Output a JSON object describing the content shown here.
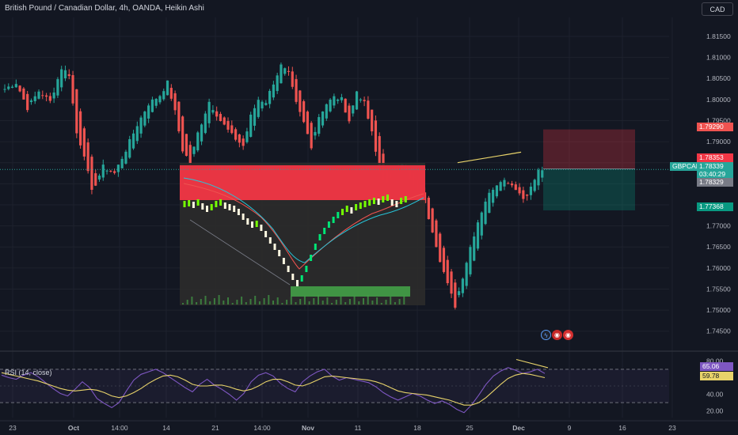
{
  "header": {
    "title": "British Pound / Canadian Dollar, 4h, OANDA, Heikin Ashi",
    "currency_button": "CAD"
  },
  "price_tags": {
    "sl": "1.79290",
    "entry": "1.78353",
    "last_symbol": "GBPCAD",
    "last_price": "1.78339",
    "countdown": "03:40:29",
    "bid": "1.78329",
    "tp": "1.77368"
  },
  "rsi_tags": {
    "rsi": "65.06",
    "ma": "59.78"
  },
  "colors": {
    "up": "#26a69a",
    "down": "#ef5350",
    "background": "#131722",
    "grid": "#1e222d",
    "rsi_line": "#7e57c2",
    "rsi_ma": "#e8d36a"
  },
  "chart_data": [
    {
      "type": "candlestick",
      "title": "British Pound / Canadian Dollar, 4h, OANDA, Heikin Ashi",
      "x_ticks": [
        "23",
        "Oct",
        "14:00",
        "14",
        "21",
        "14:00",
        "Nov",
        "11",
        "18",
        "25",
        "Dec",
        "9",
        "16",
        "23"
      ],
      "y_ticks": [
        "1.81500",
        "1.81000",
        "1.80500",
        "1.80000",
        "1.79500",
        "1.79000",
        "1.78500",
        "1.78000",
        "1.77500",
        "1.77000",
        "1.76500",
        "1.76000",
        "1.75500",
        "1.75000",
        "1.74500"
      ],
      "ylim": [
        1.741,
        1.8195
      ],
      "close_path": [
        [
          0,
          1.8025
        ],
        [
          3,
          1.804
        ],
        [
          6,
          1.798
        ],
        [
          9,
          1.802
        ],
        [
          12,
          1.7995
        ],
        [
          15,
          1.8075
        ],
        [
          17,
          1.806
        ],
        [
          19,
          1.792
        ],
        [
          21,
          1.787
        ],
        [
          23,
          1.778
        ],
        [
          26,
          1.784
        ],
        [
          29,
          1.7825
        ],
        [
          32,
          1.788
        ],
        [
          35,
          1.794
        ],
        [
          38,
          1.799
        ],
        [
          41,
          1.801
        ],
        [
          43,
          1.804
        ],
        [
          45,
          1.797
        ],
        [
          47,
          1.788
        ],
        [
          49,
          1.785
        ],
        [
          51,
          1.792
        ],
        [
          54,
          1.7995
        ],
        [
          57,
          1.795
        ],
        [
          60,
          1.7915
        ],
        [
          63,
          1.789
        ],
        [
          65,
          1.796
        ],
        [
          67,
          1.8
        ],
        [
          69,
          1.7995
        ],
        [
          71,
          1.804
        ],
        [
          73,
          1.808
        ],
        [
          75,
          1.806
        ],
        [
          77,
          1.799
        ],
        [
          79,
          1.7945
        ],
        [
          81,
          1.789
        ],
        [
          83,
          1.796
        ],
        [
          85,
          1.799
        ],
        [
          87,
          1.8005
        ],
        [
          89,
          1.8
        ],
        [
          91,
          1.795
        ],
        [
          93,
          1.802
        ],
        [
          95,
          1.799
        ],
        [
          97,
          1.792
        ],
        [
          99,
          1.783
        ],
        [
          101,
          1.78
        ],
        [
          103,
          1.783
        ],
        [
          105,
          1.785
        ],
        [
          107,
          1.781
        ],
        [
          109,
          1.778
        ],
        [
          111,
          1.775
        ],
        [
          113,
          1.769
        ],
        [
          115,
          1.762
        ],
        [
          117,
          1.756
        ],
        [
          119,
          1.751
        ],
        [
          121,
          1.758
        ],
        [
          123,
          1.765
        ],
        [
          125,
          1.771
        ],
        [
          127,
          1.776
        ],
        [
          129,
          1.779
        ],
        [
          131,
          1.781
        ],
        [
          133,
          1.7805
        ],
        [
          135,
          1.779
        ],
        [
          137,
          1.7765
        ],
        [
          139,
          1.779
        ],
        [
          141,
          1.783
        ],
        [
          142,
          1.7834
        ]
      ],
      "position_tool": {
        "entry": 1.78353,
        "stop": 1.7929,
        "target": 1.77368
      },
      "trend_line": [
        [
          128,
          1.785
        ],
        [
          136,
          1.7875
        ]
      ],
      "events": [
        "lightning",
        "flag-gb",
        "flag-ca"
      ]
    },
    {
      "type": "line",
      "title": "RSI (14, close)",
      "y_ticks": [
        "80.00",
        "60.00",
        "40.00",
        "20.00"
      ],
      "ylim": [
        12,
        88
      ],
      "bands": [
        70,
        30
      ],
      "series": [
        {
          "values": [
            63,
            60,
            58,
            63,
            66,
            61,
            54,
            47,
            41,
            38,
            46,
            55,
            48,
            35,
            29,
            24,
            30,
            44,
            57,
            64,
            67,
            70,
            66,
            60,
            54,
            48,
            43,
            52,
            58,
            51,
            46,
            40,
            33,
            41,
            55,
            63,
            66,
            62,
            53,
            47,
            43,
            55,
            62,
            67,
            70,
            62,
            57,
            60,
            58,
            56,
            54,
            49,
            42,
            37,
            33,
            37,
            41,
            38,
            33,
            29,
            32,
            28,
            22,
            18,
            27,
            39,
            52,
            62,
            68,
            72,
            69,
            65,
            67,
            70,
            65
          ]
        },
        {
          "values": [
            66,
            64,
            62,
            60,
            58,
            56,
            53,
            50,
            47,
            45,
            44,
            45,
            46,
            45,
            42,
            38,
            36,
            38,
            42,
            47,
            53,
            58,
            62,
            63,
            61,
            57,
            52,
            50,
            50,
            51,
            51,
            49,
            46,
            44,
            46,
            50,
            55,
            58,
            58,
            55,
            51,
            50,
            53,
            57,
            61,
            62,
            61,
            60,
            59,
            58,
            57,
            55,
            52,
            48,
            44,
            42,
            41,
            40,
            39,
            37,
            35,
            33,
            30,
            27,
            27,
            30,
            36,
            44,
            52,
            59,
            63,
            65,
            64,
            62,
            60
          ]
        }
      ],
      "trend_line": [
        [
          128,
          78
        ],
        [
          136,
          70
        ]
      ]
    }
  ]
}
